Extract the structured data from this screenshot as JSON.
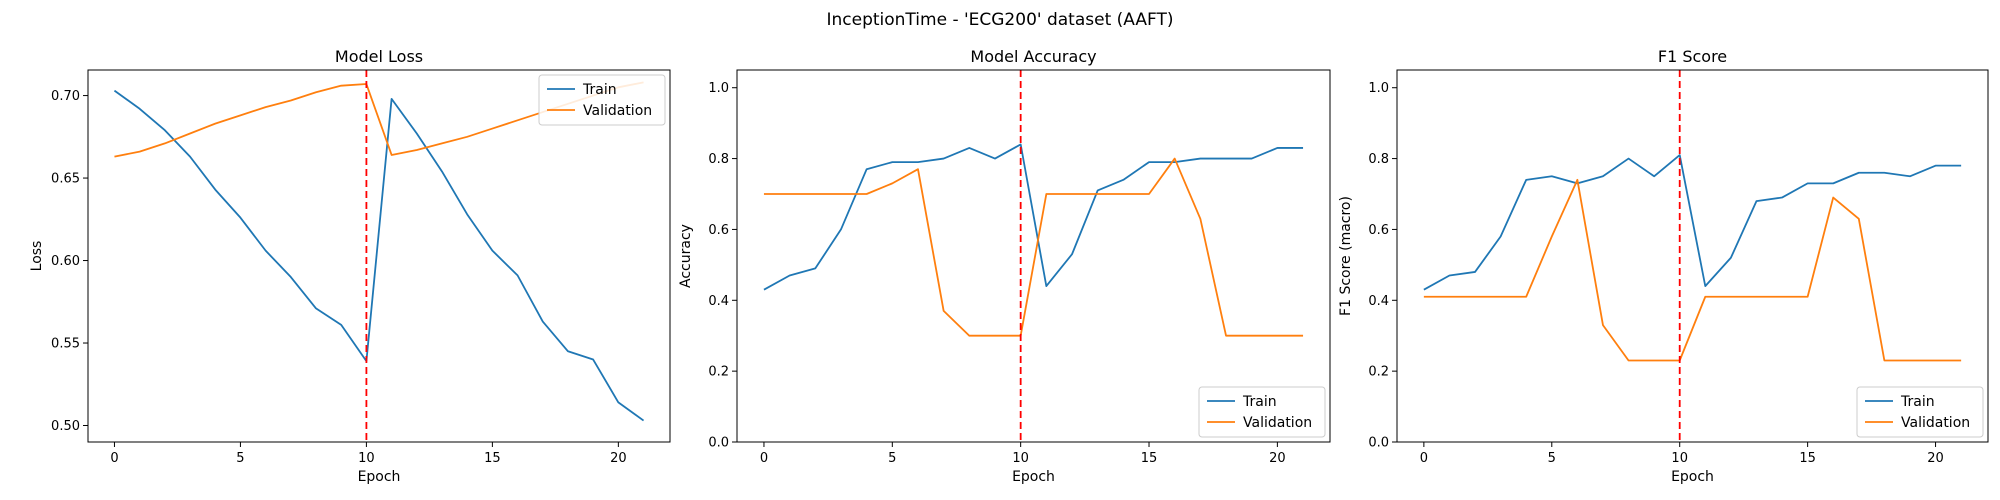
{
  "figure": {
    "suptitle": "InceptionTime - 'ECG200' dataset (AAFT)"
  },
  "colors": {
    "train": "#1f77b4",
    "validation": "#ff7f0e",
    "marker_line": "#ff0000"
  },
  "chart_data": [
    {
      "type": "line",
      "title": "Model Loss",
      "xlabel": "Epoch",
      "ylabel": "Loss",
      "xlim": [
        -1.05,
        22.05
      ],
      "ylim": [
        0.49,
        0.7155
      ],
      "xticks": [
        0,
        5,
        10,
        15,
        20
      ],
      "yticks": [
        0.5,
        0.55,
        0.6,
        0.65,
        0.7
      ],
      "ytick_labels": [
        "0.50",
        "0.55",
        "0.60",
        "0.65",
        "0.70"
      ],
      "vline_x": 10,
      "legend_loc": "upper right",
      "x": [
        0,
        1,
        2,
        3,
        4,
        5,
        6,
        7,
        8,
        9,
        10,
        11,
        12,
        13,
        14,
        15,
        16,
        17,
        18,
        19,
        20,
        21
      ],
      "series": [
        {
          "name": "Train",
          "values": [
            0.703,
            0.692,
            0.679,
            0.663,
            0.643,
            0.626,
            0.606,
            0.59,
            0.571,
            0.561,
            0.539,
            0.698,
            0.677,
            0.654,
            0.628,
            0.606,
            0.591,
            0.563,
            0.545,
            0.54,
            0.514,
            0.503
          ]
        },
        {
          "name": "Validation",
          "values": [
            0.663,
            0.666,
            0.671,
            0.677,
            0.683,
            0.688,
            0.693,
            0.697,
            0.702,
            0.706,
            0.707,
            0.664,
            0.667,
            0.671,
            0.675,
            0.68,
            0.685,
            0.69,
            0.695,
            0.7,
            0.705,
            0.708
          ]
        }
      ]
    },
    {
      "type": "line",
      "title": "Model Accuracy",
      "xlabel": "Epoch",
      "ylabel": "Accuracy",
      "xlim": [
        -1.05,
        22.05
      ],
      "ylim": [
        0.0,
        1.05
      ],
      "xticks": [
        0,
        5,
        10,
        15,
        20
      ],
      "yticks": [
        0.0,
        0.2,
        0.4,
        0.6,
        0.8,
        1.0
      ],
      "ytick_labels": [
        "0.0",
        "0.2",
        "0.4",
        "0.6",
        "0.8",
        "1.0"
      ],
      "vline_x": 10,
      "legend_loc": "lower right",
      "x": [
        0,
        1,
        2,
        3,
        4,
        5,
        6,
        7,
        8,
        9,
        10,
        11,
        12,
        13,
        14,
        15,
        16,
        17,
        18,
        19,
        20,
        21
      ],
      "series": [
        {
          "name": "Train",
          "values": [
            0.43,
            0.47,
            0.49,
            0.6,
            0.77,
            0.79,
            0.79,
            0.8,
            0.83,
            0.8,
            0.84,
            0.44,
            0.53,
            0.71,
            0.74,
            0.79,
            0.79,
            0.8,
            0.8,
            0.8,
            0.83,
            0.83
          ]
        },
        {
          "name": "Validation",
          "values": [
            0.7,
            0.7,
            0.7,
            0.7,
            0.7,
            0.73,
            0.77,
            0.37,
            0.3,
            0.3,
            0.3,
            0.7,
            0.7,
            0.7,
            0.7,
            0.7,
            0.8,
            0.63,
            0.3,
            0.3,
            0.3,
            0.3
          ]
        }
      ]
    },
    {
      "type": "line",
      "title": "F1 Score",
      "xlabel": "Epoch",
      "ylabel": "F1 Score (macro)",
      "xlim": [
        -1.05,
        22.05
      ],
      "ylim": [
        0.0,
        1.05
      ],
      "xticks": [
        0,
        5,
        10,
        15,
        20
      ],
      "yticks": [
        0.0,
        0.2,
        0.4,
        0.6,
        0.8,
        1.0
      ],
      "ytick_labels": [
        "0.0",
        "0.2",
        "0.4",
        "0.6",
        "0.8",
        "1.0"
      ],
      "vline_x": 10,
      "legend_loc": "lower right",
      "x": [
        0,
        1,
        2,
        3,
        4,
        5,
        6,
        7,
        8,
        9,
        10,
        11,
        12,
        13,
        14,
        15,
        16,
        17,
        18,
        19,
        20,
        21
      ],
      "series": [
        {
          "name": "Train",
          "values": [
            0.43,
            0.47,
            0.48,
            0.58,
            0.74,
            0.75,
            0.73,
            0.75,
            0.8,
            0.75,
            0.81,
            0.44,
            0.52,
            0.68,
            0.69,
            0.73,
            0.73,
            0.76,
            0.76,
            0.75,
            0.78,
            0.78
          ]
        },
        {
          "name": "Validation",
          "values": [
            0.41,
            0.41,
            0.41,
            0.41,
            0.41,
            0.58,
            0.74,
            0.33,
            0.23,
            0.23,
            0.23,
            0.41,
            0.41,
            0.41,
            0.41,
            0.41,
            0.69,
            0.63,
            0.23,
            0.23,
            0.23,
            0.23
          ]
        }
      ]
    }
  ]
}
